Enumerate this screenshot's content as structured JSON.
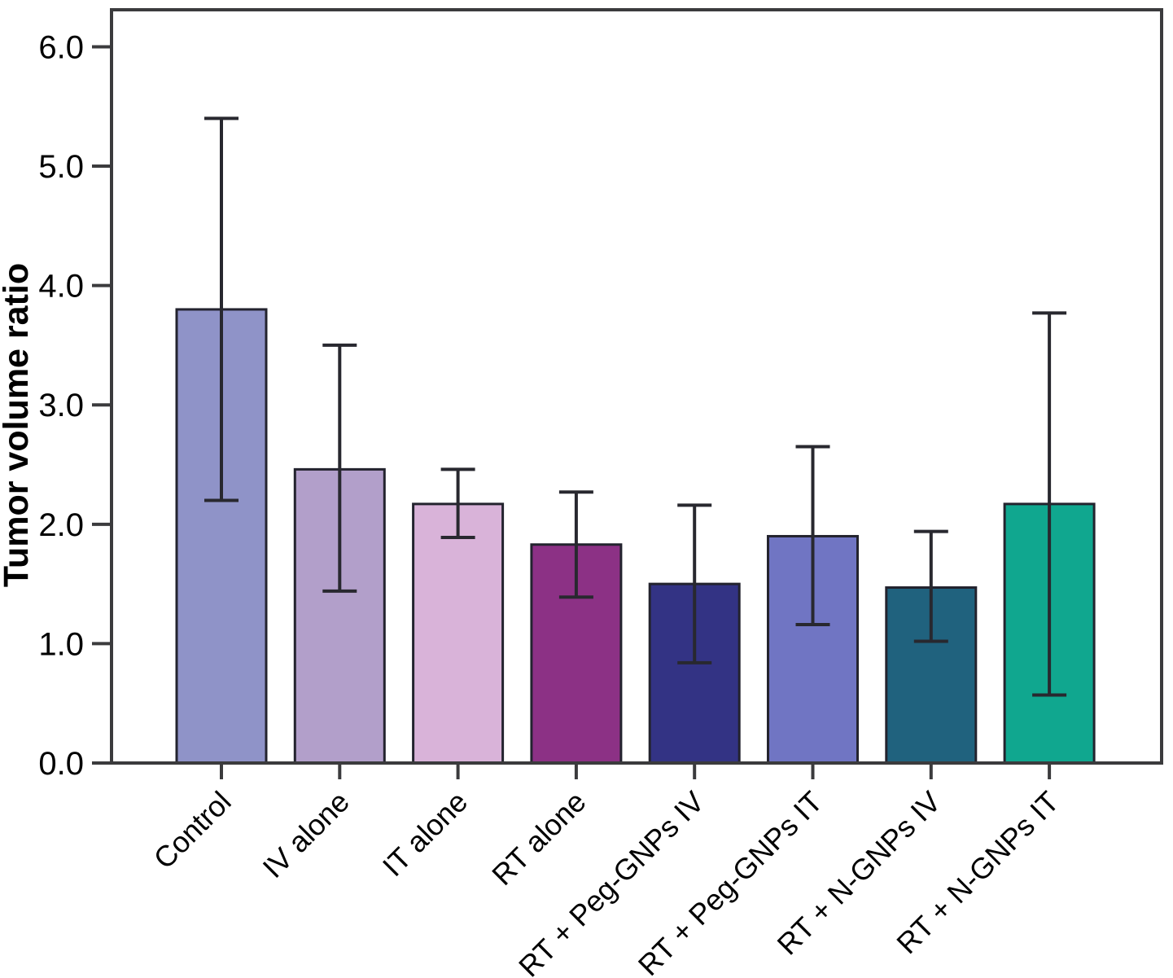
{
  "chart_data": {
    "type": "bar",
    "title": "",
    "xlabel": "",
    "ylabel": "Tumor volume ratio",
    "categories": [
      "Control",
      "IV alone",
      "IT alone",
      "RT alone",
      "RT + Peg-GNPs IV",
      "RT + Peg-GNPs IT",
      "RT + N-GNPs IV",
      "RT + N-GNPs IT"
    ],
    "series": [
      {
        "name": "Tumor volume ratio",
        "values": [
          3.8,
          2.46,
          2.17,
          1.83,
          1.5,
          1.9,
          1.47,
          2.17
        ]
      }
    ],
    "error_bars": {
      "upper": [
        5.4,
        3.5,
        2.46,
        2.27,
        2.16,
        2.65,
        1.94,
        3.77
      ],
      "lower": [
        2.2,
        1.44,
        1.89,
        1.39,
        0.84,
        1.16,
        1.02,
        0.57
      ]
    },
    "bar_colors": [
      "#8f93c8",
      "#b29fca",
      "#d9b3d9",
      "#8c3185",
      "#333384",
      "#7075c3",
      "#20627e",
      "#10a78f"
    ],
    "ytick_labels": [
      "0.0",
      "1.0",
      "2.0",
      "3.0",
      "4.0",
      "5.0",
      "6.0"
    ],
    "ylim": [
      0,
      6.31
    ],
    "grid": false,
    "legend_position": "none",
    "x_tick_label_rotation_deg": 45
  },
  "style_colors": {
    "background": "#ffffff",
    "frame": "#3b3b3d",
    "bar_outline": "#23232e",
    "error_bar": "#28282f",
    "text": "#000000"
  }
}
